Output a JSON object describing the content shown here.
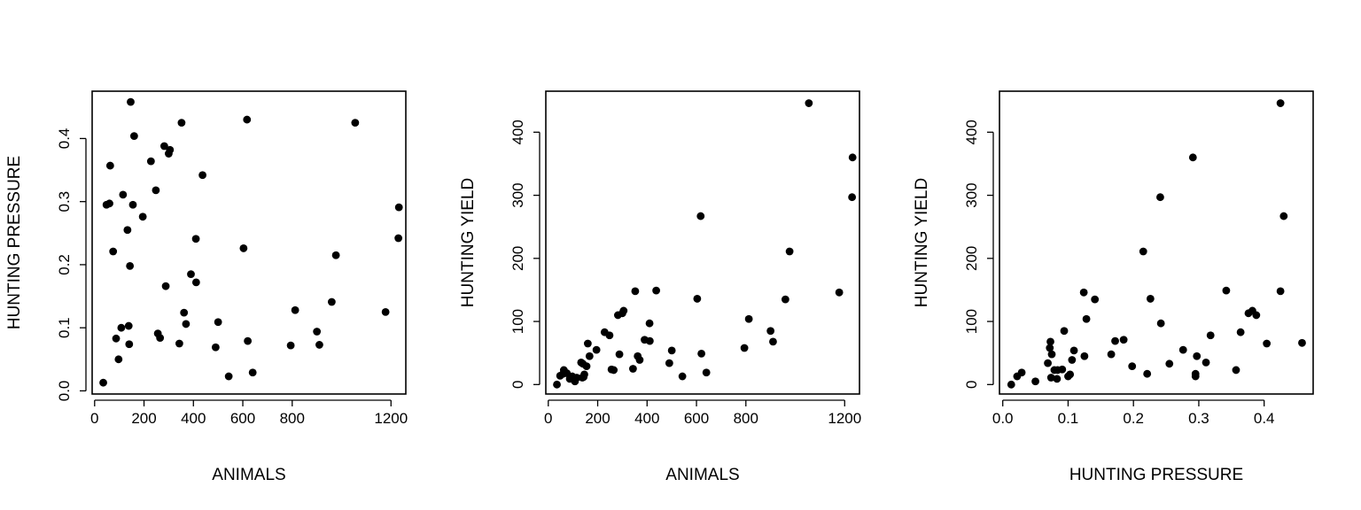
{
  "chart_data": [
    {
      "type": "scatter",
      "xlabel": "ANIMALS",
      "ylabel": "HUNTING PRESSURE",
      "xlim": [
        -10,
        1260
      ],
      "ylim": [
        -0.005,
        0.475
      ],
      "xticks": [
        0,
        200,
        400,
        600,
        800,
        1200
      ],
      "yticks": [
        0.0,
        0.1,
        0.2,
        0.3,
        0.4
      ],
      "xtick_labels": [
        "0",
        "200",
        "400",
        "600",
        "800",
        "1200"
      ],
      "ytick_labels": [
        "0.0",
        "0.1",
        "0.2",
        "0.3",
        "0.4"
      ],
      "points": [
        [
          35,
          0.013
        ],
        [
          48,
          0.295
        ],
        [
          60,
          0.297
        ],
        [
          63,
          0.357
        ],
        [
          75,
          0.221
        ],
        [
          87,
          0.083
        ],
        [
          97,
          0.05
        ],
        [
          108,
          0.1
        ],
        [
          115,
          0.311
        ],
        [
          133,
          0.255
        ],
        [
          138,
          0.103
        ],
        [
          140,
          0.074
        ],
        [
          143,
          0.198
        ],
        [
          146,
          0.458
        ],
        [
          155,
          0.295
        ],
        [
          160,
          0.404
        ],
        [
          195,
          0.276
        ],
        [
          228,
          0.364
        ],
        [
          248,
          0.318
        ],
        [
          256,
          0.091
        ],
        [
          265,
          0.084
        ],
        [
          282,
          0.388
        ],
        [
          288,
          0.166
        ],
        [
          300,
          0.376
        ],
        [
          305,
          0.382
        ],
        [
          343,
          0.075
        ],
        [
          352,
          0.425
        ],
        [
          362,
          0.124
        ],
        [
          370,
          0.106
        ],
        [
          390,
          0.185
        ],
        [
          410,
          0.241
        ],
        [
          411,
          0.172
        ],
        [
          437,
          0.342
        ],
        [
          490,
          0.069
        ],
        [
          500,
          0.109
        ],
        [
          543,
          0.023
        ],
        [
          603,
          0.226
        ],
        [
          617,
          0.43
        ],
        [
          620,
          0.079
        ],
        [
          640,
          0.029
        ],
        [
          794,
          0.072
        ],
        [
          812,
          0.128
        ],
        [
          900,
          0.094
        ],
        [
          910,
          0.073
        ],
        [
          960,
          0.141
        ],
        [
          977,
          0.215
        ],
        [
          1055,
          0.425
        ],
        [
          1178,
          0.125
        ],
        [
          1230,
          0.242
        ],
        [
          1232,
          0.291
        ]
      ]
    },
    {
      "type": "scatter",
      "xlabel": "ANIMALS",
      "ylabel": "HUNTING YIELD",
      "xlim": [
        -10,
        1260
      ],
      "ylim": [
        -15,
        465
      ],
      "xticks": [
        0,
        200,
        400,
        600,
        800,
        1200
      ],
      "yticks": [
        0,
        100,
        200,
        300,
        400
      ],
      "xtick_labels": [
        "0",
        "200",
        "400",
        "600",
        "800",
        "1200"
      ],
      "ytick_labels": [
        "0",
        "100",
        "200",
        "300",
        "400"
      ],
      "points": [
        [
          35,
          0
        ],
        [
          48,
          14
        ],
        [
          60,
          17
        ],
        [
          63,
          23
        ],
        [
          75,
          18
        ],
        [
          87,
          9
        ],
        [
          97,
          13
        ],
        [
          108,
          5
        ],
        [
          115,
          11
        ],
        [
          133,
          35
        ],
        [
          138,
          11
        ],
        [
          140,
          33
        ],
        [
          143,
          12
        ],
        [
          146,
          16
        ],
        [
          155,
          29
        ],
        [
          160,
          65
        ],
        [
          167,
          45
        ],
        [
          195,
          55
        ],
        [
          228,
          83
        ],
        [
          248,
          78
        ],
        [
          256,
          24
        ],
        [
          265,
          23
        ],
        [
          282,
          110
        ],
        [
          288,
          48
        ],
        [
          300,
          113
        ],
        [
          305,
          117
        ],
        [
          343,
          25
        ],
        [
          352,
          148
        ],
        [
          362,
          45
        ],
        [
          370,
          39
        ],
        [
          390,
          71
        ],
        [
          410,
          97
        ],
        [
          411,
          69
        ],
        [
          437,
          149
        ],
        [
          490,
          34
        ],
        [
          500,
          54
        ],
        [
          543,
          13
        ],
        [
          603,
          136
        ],
        [
          617,
          267
        ],
        [
          620,
          49
        ],
        [
          640,
          19
        ],
        [
          794,
          58
        ],
        [
          812,
          104
        ],
        [
          900,
          85
        ],
        [
          910,
          68
        ],
        [
          960,
          135
        ],
        [
          977,
          211
        ],
        [
          1055,
          446
        ],
        [
          1178,
          146
        ],
        [
          1230,
          297
        ],
        [
          1232,
          360
        ]
      ]
    },
    {
      "type": "scatter",
      "xlabel": "HUNTING PRESSURE",
      "ylabel": "HUNTING YIELD",
      "xlim": [
        -0.005,
        0.475
      ],
      "ylim": [
        -15,
        465
      ],
      "xticks": [
        0.0,
        0.1,
        0.2,
        0.3,
        0.4
      ],
      "yticks": [
        0,
        100,
        200,
        300,
        400
      ],
      "xtick_labels": [
        "0.0",
        "0.1",
        "0.2",
        "0.3",
        "0.4"
      ],
      "ytick_labels": [
        "0",
        "100",
        "200",
        "300",
        "400"
      ],
      "points": [
        [
          0.013,
          0
        ],
        [
          0.022,
          13
        ],
        [
          0.029,
          19
        ],
        [
          0.05,
          5
        ],
        [
          0.069,
          34
        ],
        [
          0.072,
          58
        ],
        [
          0.073,
          68
        ],
        [
          0.074,
          11
        ],
        [
          0.075,
          48
        ],
        [
          0.079,
          23
        ],
        [
          0.083,
          9
        ],
        [
          0.084,
          23
        ],
        [
          0.091,
          24
        ],
        [
          0.094,
          85
        ],
        [
          0.1,
          13
        ],
        [
          0.103,
          16
        ],
        [
          0.106,
          39
        ],
        [
          0.109,
          54
        ],
        [
          0.124,
          146
        ],
        [
          0.125,
          45
        ],
        [
          0.128,
          104
        ],
        [
          0.141,
          135
        ],
        [
          0.166,
          48
        ],
        [
          0.172,
          69
        ],
        [
          0.185,
          71
        ],
        [
          0.198,
          29
        ],
        [
          0.215,
          211
        ],
        [
          0.221,
          17
        ],
        [
          0.226,
          136
        ],
        [
          0.241,
          297
        ],
        [
          0.242,
          97
        ],
        [
          0.255,
          33
        ],
        [
          0.276,
          55
        ],
        [
          0.291,
          360
        ],
        [
          0.295,
          13
        ],
        [
          0.295,
          17
        ],
        [
          0.297,
          45
        ],
        [
          0.311,
          35
        ],
        [
          0.318,
          78
        ],
        [
          0.342,
          149
        ],
        [
          0.357,
          23
        ],
        [
          0.364,
          83
        ],
        [
          0.376,
          113
        ],
        [
          0.382,
          117
        ],
        [
          0.388,
          110
        ],
        [
          0.404,
          65
        ],
        [
          0.425,
          446
        ],
        [
          0.425,
          148
        ],
        [
          0.43,
          267
        ],
        [
          0.458,
          66
        ]
      ]
    }
  ]
}
